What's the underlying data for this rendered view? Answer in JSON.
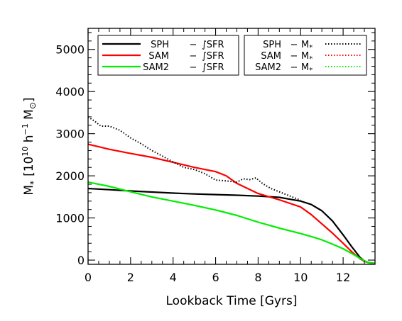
{
  "chart_data": {
    "type": "line",
    "title": "",
    "xlabel": "Lookback Time [Gyrs]",
    "ylabel": "M* [10^10 h^-1 M⊙]",
    "ylabel_parts": {
      "symbol": "M",
      "subscript": "*",
      "bracket_open": "[10",
      "exp1": "10",
      "h": " h",
      "exp2": "−1",
      "m": " M",
      "sun_sub": "⊙",
      "bracket_close": "]"
    },
    "xlim": [
      0,
      13.5
    ],
    "ylim": [
      -100,
      5500
    ],
    "xticks": [
      0,
      2,
      4,
      6,
      8,
      10,
      12
    ],
    "xtick_labels": [
      "0",
      "2",
      "4",
      "6",
      "8",
      "10",
      "12"
    ],
    "yticks": [
      0,
      1000,
      2000,
      3000,
      4000,
      5000
    ],
    "ytick_labels": [
      "0",
      "1000",
      "2000",
      "3000",
      "4000",
      "5000"
    ],
    "grid": false,
    "legends": [
      {
        "placement": "top-left",
        "entries": [
          {
            "label": "SPH",
            "dash": "−",
            "quantity": "∫SFR",
            "series_index": 0
          },
          {
            "label": "SAM",
            "dash": "−",
            "quantity": "∫SFR",
            "series_index": 1
          },
          {
            "label": "SAM2",
            "dash": "−",
            "quantity": "∫SFR",
            "series_index": 2
          }
        ]
      },
      {
        "placement": "top-right",
        "entries": [
          {
            "label": "SPH",
            "dash": "−",
            "quantity": "M",
            "quantity_sub": "*",
            "series_index": 3
          },
          {
            "label": "SAM",
            "dash": "−",
            "quantity": "M",
            "quantity_sub": "*",
            "series_index": 4
          },
          {
            "label": "SAM2",
            "dash": "−",
            "quantity": "M",
            "quantity_sub": "*",
            "series_index": 5
          }
        ]
      }
    ],
    "series": [
      {
        "name": "SPH − ∫SFR",
        "color": "#000000",
        "style": "solid",
        "x": [
          0,
          1,
          2,
          3,
          4,
          5,
          6,
          7,
          8,
          9,
          10,
          10.5,
          11,
          11.5,
          12,
          12.4,
          12.8,
          13.0,
          13.2,
          13.5
        ],
        "y": [
          1700,
          1670,
          1640,
          1615,
          1590,
          1570,
          1555,
          1540,
          1520,
          1490,
          1400,
          1320,
          1170,
          930,
          600,
          320,
          60,
          -20,
          -60,
          -80
        ]
      },
      {
        "name": "SAM − ∫SFR",
        "color": "#ff0000",
        "style": "solid",
        "x": [
          0,
          0.5,
          1,
          2,
          3,
          4,
          5,
          6,
          6.5,
          7,
          8,
          9,
          10,
          10.5,
          11,
          11.5,
          12,
          12.4,
          12.8,
          13.0,
          13.2,
          13.5
        ],
        "y": [
          2750,
          2690,
          2630,
          2530,
          2440,
          2320,
          2200,
          2100,
          2000,
          1820,
          1580,
          1430,
          1260,
          1080,
          860,
          640,
          400,
          200,
          30,
          -30,
          -60,
          -80
        ]
      },
      {
        "name": "SAM2 − ∫SFR",
        "color": "#00ee00",
        "style": "solid",
        "x": [
          0,
          1,
          2,
          3,
          4,
          5,
          6,
          7,
          8,
          9,
          10,
          10.5,
          11,
          11.5,
          12,
          12.5,
          13.0,
          13.2,
          13.5
        ],
        "y": [
          1850,
          1750,
          1620,
          1500,
          1400,
          1300,
          1190,
          1060,
          900,
          760,
          630,
          560,
          480,
          380,
          270,
          130,
          -20,
          -60,
          -80
        ]
      },
      {
        "name": "SPH − M*",
        "color": "#000000",
        "style": "dotted",
        "x": [
          0,
          0.3,
          0.6,
          1.0,
          1.5,
          2.0,
          2.5,
          3.0,
          3.5,
          4.0,
          4.5,
          5.0,
          5.5,
          6.0,
          6.5,
          7.0,
          7.3,
          7.6,
          7.9,
          8.2,
          8.6,
          9.0,
          9.5,
          10.0
        ],
        "y": [
          3400,
          3300,
          3180,
          3180,
          3080,
          2900,
          2760,
          2600,
          2470,
          2330,
          2200,
          2150,
          2050,
          1900,
          1880,
          1850,
          1930,
          1910,
          1950,
          1820,
          1700,
          1620,
          1520,
          1420
        ]
      },
      {
        "name": "SAM − M*",
        "color": "#ff0000",
        "style": "dotted",
        "x": [],
        "y": []
      },
      {
        "name": "SAM2 − M*",
        "color": "#00ee00",
        "style": "dotted",
        "x": [],
        "y": []
      }
    ]
  }
}
